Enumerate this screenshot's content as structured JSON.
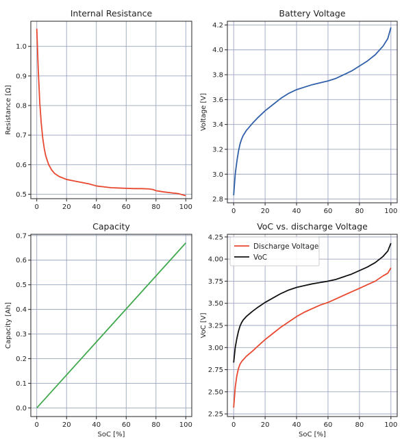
{
  "colors": {
    "red": "#e8472e",
    "blue": "#2f5fa8",
    "green": "#3fa84a",
    "black": "#111111",
    "grid": "#9aa4bd"
  },
  "chart_data": [
    {
      "type": "line",
      "title": "Internal Resistance",
      "xlabel": "",
      "ylabel": "Resistance [Ω]",
      "xlim": [
        -4,
        104
      ],
      "ylim": [
        0.485,
        1.085
      ],
      "xticks": [
        0,
        20,
        40,
        60,
        80,
        100
      ],
      "xtick_labels": [
        "0",
        "20",
        "40",
        "60",
        "80",
        "100"
      ],
      "yticks": [
        0.5,
        0.6,
        0.7,
        0.8,
        0.9,
        1.0
      ],
      "ytick_labels": [
        "0.5",
        "0.6",
        "0.7",
        "0.8",
        "0.9",
        "1.0"
      ],
      "grid": true,
      "series": [
        {
          "color": "#e8472e",
          "x": [
            0,
            1,
            2,
            3,
            4,
            5,
            6,
            8,
            10,
            12,
            15,
            20,
            25,
            30,
            35,
            40,
            45,
            50,
            55,
            60,
            65,
            70,
            75,
            78,
            80,
            85,
            90,
            95,
            100
          ],
          "y": [
            1.06,
            0.92,
            0.81,
            0.74,
            0.69,
            0.655,
            0.63,
            0.6,
            0.582,
            0.57,
            0.56,
            0.55,
            0.545,
            0.54,
            0.535,
            0.528,
            0.525,
            0.522,
            0.521,
            0.52,
            0.519,
            0.519,
            0.518,
            0.516,
            0.512,
            0.508,
            0.505,
            0.502,
            0.495
          ]
        }
      ]
    },
    {
      "type": "line",
      "title": "Battery Voltage",
      "xlabel": "",
      "ylabel": "Voltage [V]",
      "xlim": [
        -4,
        104
      ],
      "ylim": [
        2.77,
        4.23
      ],
      "xticks": [
        0,
        20,
        40,
        60,
        80,
        100
      ],
      "xtick_labels": [
        "0",
        "20",
        "40",
        "60",
        "80",
        "100"
      ],
      "yticks": [
        2.8,
        3.0,
        3.2,
        3.4,
        3.6,
        3.8,
        4.0,
        4.2
      ],
      "ytick_labels": [
        "2.8",
        "3.0",
        "3.2",
        "3.4",
        "3.6",
        "3.8",
        "4.0",
        "4.2"
      ],
      "grid": true,
      "series": [
        {
          "color": "#2f5fa8",
          "x": [
            0,
            1,
            2,
            3,
            4,
            5,
            6,
            8,
            10,
            12,
            15,
            20,
            25,
            30,
            35,
            40,
            45,
            50,
            55,
            60,
            65,
            70,
            75,
            80,
            85,
            90,
            95,
            98,
            100
          ],
          "y": [
            2.83,
            3.0,
            3.1,
            3.18,
            3.24,
            3.28,
            3.31,
            3.35,
            3.38,
            3.41,
            3.45,
            3.51,
            3.56,
            3.61,
            3.65,
            3.68,
            3.7,
            3.72,
            3.735,
            3.75,
            3.77,
            3.8,
            3.83,
            3.87,
            3.91,
            3.96,
            4.03,
            4.09,
            4.18
          ]
        }
      ]
    },
    {
      "type": "line",
      "title": "Capacity",
      "xlabel": "SoC [%]",
      "ylabel": "Capacity [Ah]",
      "xlim": [
        -4,
        104
      ],
      "ylim": [
        -0.035,
        0.705
      ],
      "xticks": [
        0,
        20,
        40,
        60,
        80,
        100
      ],
      "xtick_labels": [
        "0",
        "20",
        "40",
        "60",
        "80",
        "100"
      ],
      "yticks": [
        0.0,
        0.1,
        0.2,
        0.3,
        0.4,
        0.5,
        0.6,
        0.7
      ],
      "ytick_labels": [
        "0.0",
        "0.1",
        "0.2",
        "0.3",
        "0.4",
        "0.5",
        "0.6",
        "0.7"
      ],
      "grid": true,
      "series": [
        {
          "color": "#3fa84a",
          "x": [
            0,
            50,
            100
          ],
          "y": [
            0.0,
            0.335,
            0.67
          ]
        }
      ]
    },
    {
      "type": "line",
      "title": "VoC vs. discharge Voltage",
      "xlabel": "SoC [%]",
      "ylabel": "VoC [V]",
      "xlim": [
        -4,
        104
      ],
      "ylim": [
        2.22,
        4.28
      ],
      "xticks": [
        0,
        20,
        40,
        60,
        80,
        100
      ],
      "xtick_labels": [
        "0",
        "20",
        "40",
        "60",
        "80",
        "100"
      ],
      "yticks": [
        2.25,
        2.5,
        2.75,
        3.0,
        3.25,
        3.5,
        3.75,
        4.0,
        4.25
      ],
      "ytick_labels": [
        "2.25",
        "2.50",
        "2.75",
        "3.00",
        "3.25",
        "3.50",
        "3.75",
        "4.00",
        "4.25"
      ],
      "grid": true,
      "legend": "top-left",
      "series": [
        {
          "name": "Discharge Voltage",
          "color": "#e8472e",
          "x": [
            0,
            1,
            2,
            3,
            4,
            5,
            6,
            8,
            10,
            12,
            15,
            20,
            25,
            30,
            35,
            40,
            45,
            50,
            55,
            60,
            65,
            70,
            75,
            80,
            85,
            90,
            95,
            98,
            100
          ],
          "y": [
            2.32,
            2.55,
            2.68,
            2.76,
            2.81,
            2.84,
            2.86,
            2.9,
            2.93,
            2.96,
            3.01,
            3.09,
            3.16,
            3.23,
            3.29,
            3.35,
            3.4,
            3.44,
            3.48,
            3.51,
            3.55,
            3.59,
            3.63,
            3.67,
            3.71,
            3.75,
            3.81,
            3.84,
            3.9
          ]
        },
        {
          "name": "VoC",
          "color": "#111111",
          "x": [
            0,
            1,
            2,
            3,
            4,
            5,
            6,
            8,
            10,
            12,
            15,
            20,
            25,
            30,
            35,
            40,
            45,
            50,
            55,
            60,
            65,
            70,
            75,
            80,
            85,
            90,
            95,
            98,
            100
          ],
          "y": [
            2.83,
            3.0,
            3.1,
            3.18,
            3.24,
            3.28,
            3.31,
            3.35,
            3.38,
            3.41,
            3.45,
            3.51,
            3.56,
            3.61,
            3.65,
            3.68,
            3.7,
            3.72,
            3.735,
            3.75,
            3.77,
            3.8,
            3.83,
            3.87,
            3.91,
            3.96,
            4.03,
            4.09,
            4.18
          ]
        }
      ]
    }
  ]
}
